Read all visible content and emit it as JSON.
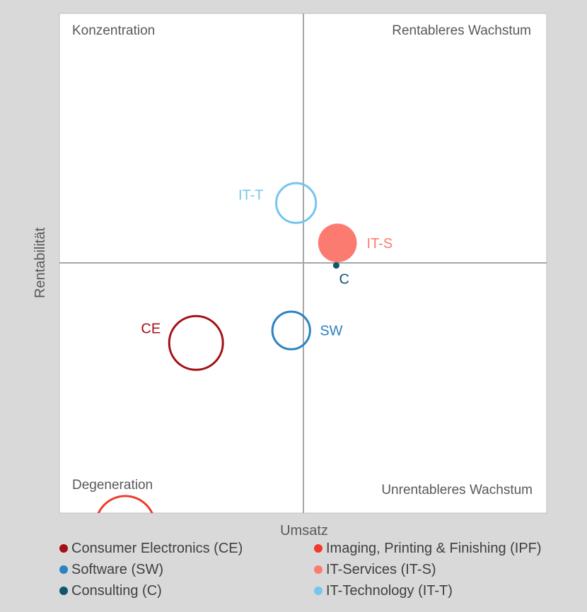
{
  "chart_data": {
    "type": "bubble-quadrant",
    "xlabel": "Umsatz",
    "ylabel": "Rentabilität",
    "xlim": [
      -1,
      1
    ],
    "ylim": [
      -1,
      1
    ],
    "grid": false,
    "crosshair_at": [
      0,
      0
    ],
    "quadrants": {
      "top_left": "Konzentration",
      "top_right": "Rentableres Wachstum",
      "bottom_left": "Degeneration",
      "bottom_right": "Unrentableres Wachstum"
    },
    "series": [
      {
        "name": "Consumer Electronics (CE)",
        "label": "CE",
        "x": -0.44,
        "y": -0.32,
        "size": 1.0,
        "color": "#a50f15",
        "filled": false
      },
      {
        "name": "Imaging, Printing & Finishing (IPF)",
        "label": "",
        "x": -0.73,
        "y": -1.05,
        "size": 1.1,
        "color": "#ef3b2c",
        "filled": false
      },
      {
        "name": "Software (SW)",
        "label": "SW",
        "x": -0.05,
        "y": -0.27,
        "size": 0.7,
        "color": "#2b83c3",
        "filled": false
      },
      {
        "name": "IT-Services (IT-S)",
        "label": "IT-S",
        "x": 0.14,
        "y": 0.08,
        "size": 0.72,
        "color": "#fc7b71",
        "filled": true
      },
      {
        "name": "Consulting (C)",
        "label": "C",
        "x": 0.135,
        "y": -0.01,
        "size": 0.12,
        "color": "#0f5670",
        "filled": true
      },
      {
        "name": "IT-Technology (IT-T)",
        "label": "IT-T",
        "x": -0.03,
        "y": 0.24,
        "size": 0.74,
        "color": "#74c6f0",
        "filled": false
      }
    ]
  },
  "legend": {
    "items": [
      {
        "label": "Consumer Electronics (CE)",
        "color": "#a50f15"
      },
      {
        "label": "Imaging, Printing & Finishing (IPF)",
        "color": "#ef3b2c"
      },
      {
        "label": "Software (SW)",
        "color": "#2b83c3"
      },
      {
        "label": "IT-Services (IT-S)",
        "color": "#fc7b71"
      },
      {
        "label": "Consulting (C)",
        "color": "#0f5670"
      },
      {
        "label": "IT-Technology (IT-T)",
        "color": "#74c6f0"
      }
    ]
  }
}
